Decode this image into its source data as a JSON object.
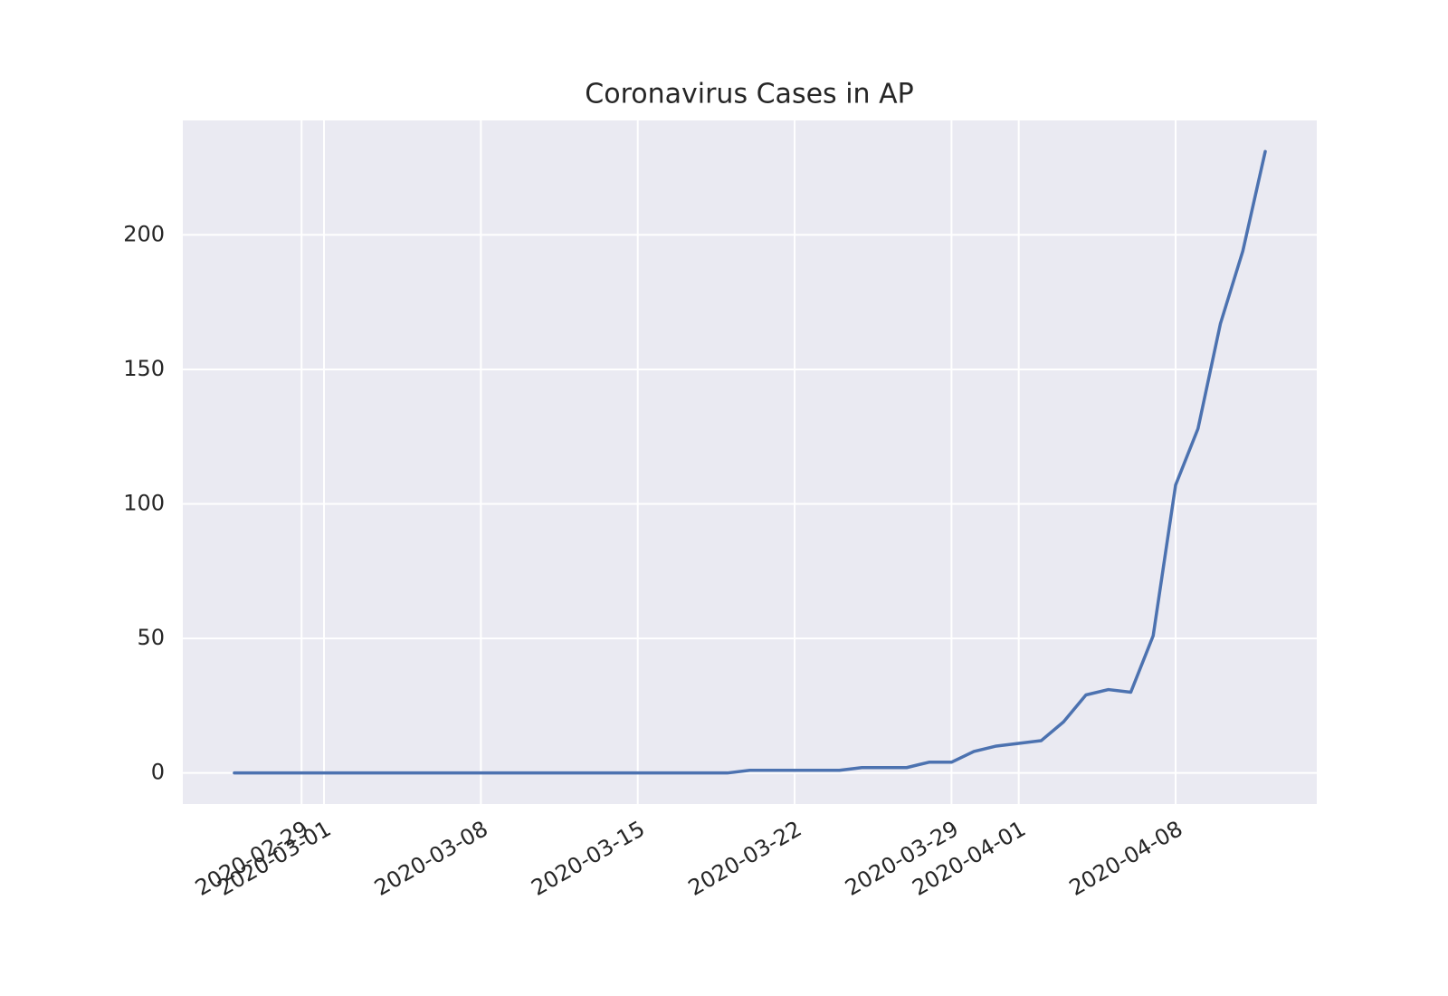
{
  "chart_data": {
    "type": "line",
    "title": "Coronavirus Cases in AP",
    "x": [
      "2020-02-26",
      "2020-02-27",
      "2020-02-28",
      "2020-02-29",
      "2020-03-01",
      "2020-03-02",
      "2020-03-03",
      "2020-03-04",
      "2020-03-05",
      "2020-03-06",
      "2020-03-07",
      "2020-03-08",
      "2020-03-09",
      "2020-03-10",
      "2020-03-11",
      "2020-03-12",
      "2020-03-13",
      "2020-03-14",
      "2020-03-15",
      "2020-03-16",
      "2020-03-17",
      "2020-03-18",
      "2020-03-19",
      "2020-03-20",
      "2020-03-21",
      "2020-03-22",
      "2020-03-23",
      "2020-03-24",
      "2020-03-25",
      "2020-03-26",
      "2020-03-27",
      "2020-03-28",
      "2020-03-29",
      "2020-03-30",
      "2020-03-31",
      "2020-04-01",
      "2020-04-02",
      "2020-04-03",
      "2020-04-04",
      "2020-04-05",
      "2020-04-06",
      "2020-04-07",
      "2020-04-08",
      "2020-04-09",
      "2020-04-10",
      "2020-04-11",
      "2020-04-12"
    ],
    "values": [
      0,
      0,
      0,
      0,
      0,
      0,
      0,
      0,
      0,
      0,
      0,
      0,
      0,
      0,
      0,
      0,
      0,
      0,
      0,
      0,
      0,
      0,
      0,
      1,
      1,
      1,
      1,
      1,
      2,
      2,
      2,
      4,
      4,
      8,
      10,
      11,
      12,
      19,
      29,
      31,
      30,
      51,
      107,
      128,
      167,
      194,
      231
    ],
    "color": "#4c72b0",
    "xlim": [
      "2020-02-23T16:48",
      "2020-04-14T07:12"
    ],
    "xticks": [
      "2020-02-29",
      "2020-03-01",
      "2020-03-08",
      "2020-03-15",
      "2020-03-22",
      "2020-03-29",
      "2020-04-01",
      "2020-04-08"
    ],
    "ylim": [
      -11.55,
      242.55
    ],
    "yticks": [
      0,
      50,
      100,
      150,
      200
    ],
    "grid": true
  }
}
